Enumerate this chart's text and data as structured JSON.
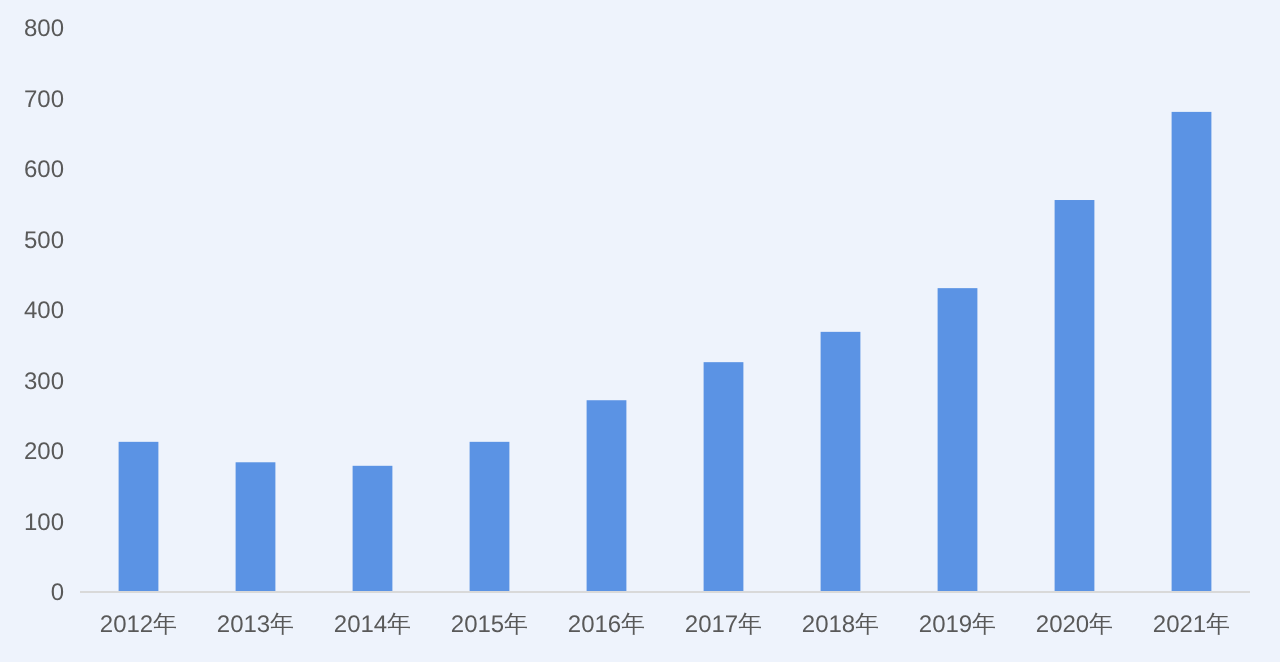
{
  "chart_data": {
    "type": "bar",
    "categories": [
      "2012年",
      "2013年",
      "2014年",
      "2015年",
      "2016年",
      "2017年",
      "2018年",
      "2019年",
      "2020年",
      "2021年"
    ],
    "values": [
      213,
      184,
      179,
      213,
      272,
      326,
      369,
      431,
      556,
      681
    ],
    "color": "#5b93e4",
    "ylim": [
      0,
      800
    ],
    "yticks": [
      0,
      100,
      200,
      300,
      400,
      500,
      600,
      700,
      800
    ],
    "grid": false
  }
}
